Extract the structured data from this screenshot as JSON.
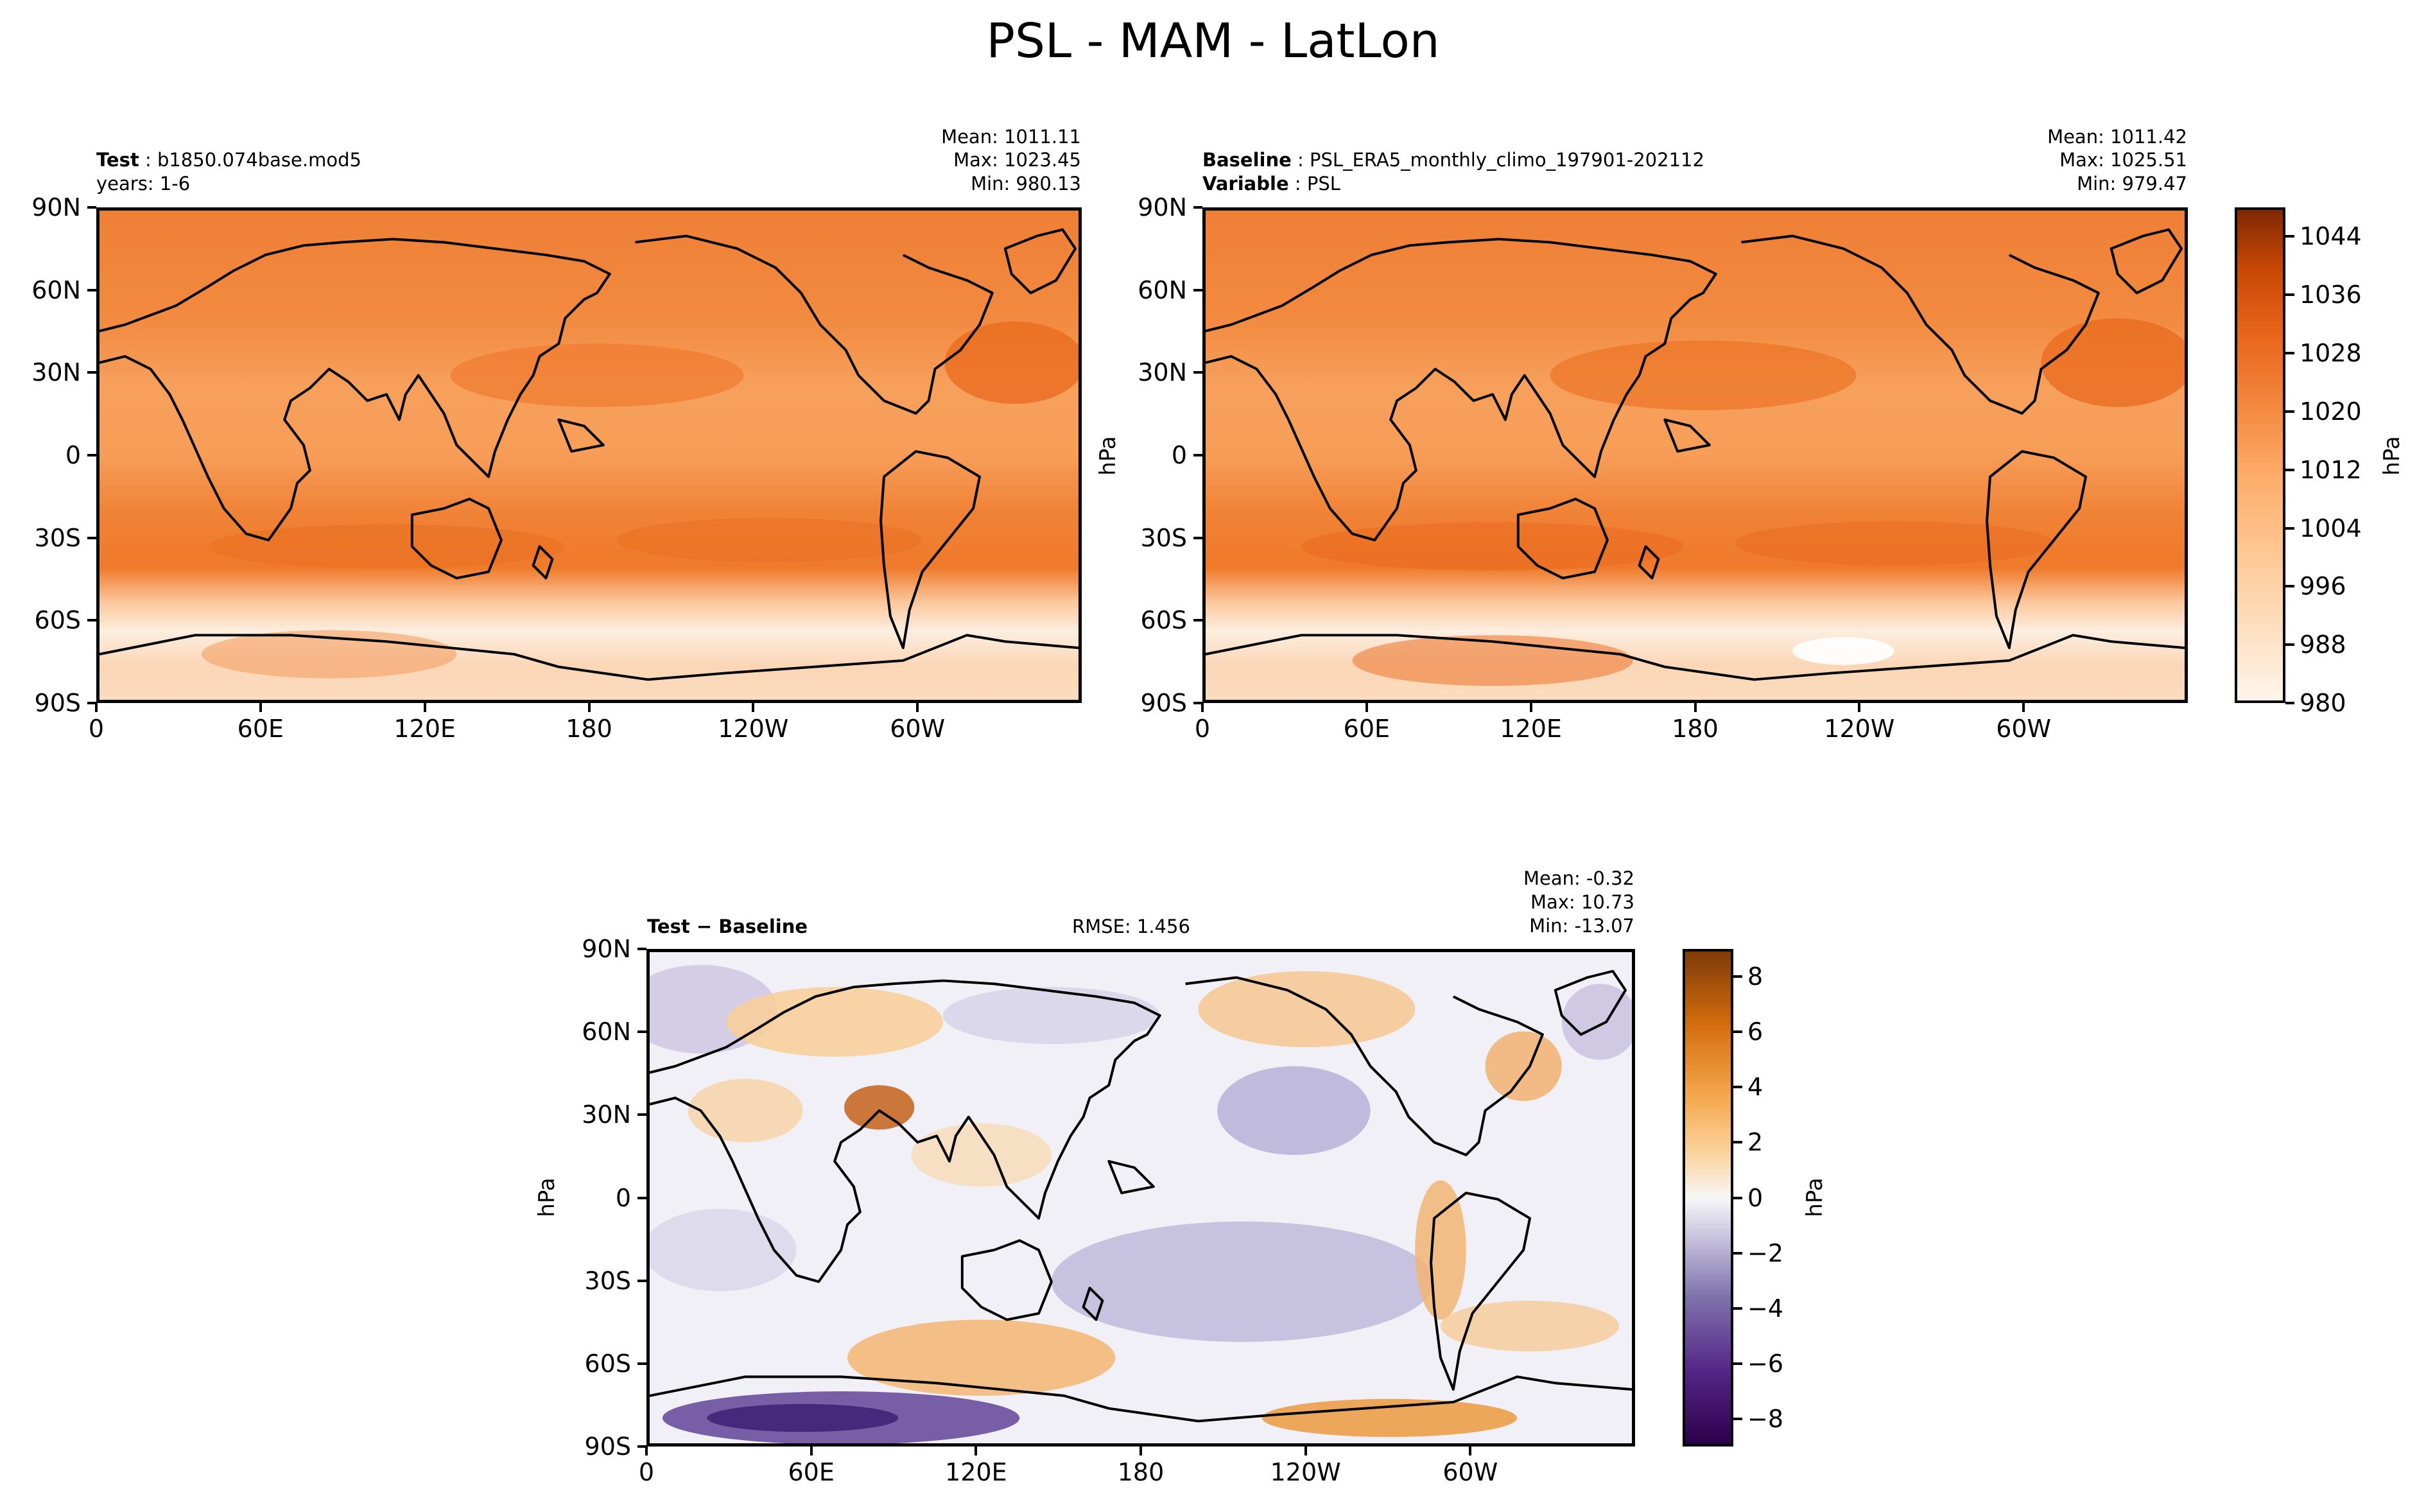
{
  "figure_title": "PSL - MAM - LatLon",
  "panels": {
    "test": {
      "label_bold": "Test",
      "label_value": "b1850.074base.mod5",
      "line2": "years: 1-6",
      "mean": "Mean: 1011.11",
      "max": "Max: 1023.45",
      "min": "Min: 980.13"
    },
    "baseline": {
      "label_bold": "Baseline",
      "label_value": "PSL_ERA5_monthly_climo_197901-202112",
      "var_bold": "Variable",
      "var_value": "PSL",
      "mean": "Mean: 1011.42",
      "max": "Max: 1025.51",
      "min": "Min: 979.47"
    },
    "diff": {
      "label": "Test − Baseline",
      "rmse": "RMSE: 1.456",
      "mean": "Mean: -0.32",
      "max": "Max: 10.73",
      "min": "Min: -13.07"
    }
  },
  "axes": {
    "lat_ticks": [
      "90N",
      "60N",
      "30N",
      "0",
      "30S",
      "60S",
      "90S"
    ],
    "lon_ticks": [
      "0",
      "60E",
      "120E",
      "180",
      "120W",
      "60W"
    ]
  },
  "colorbars": {
    "top": {
      "unit": "hPa",
      "ticks": [
        "1044",
        "1036",
        "1028",
        "1020",
        "1012",
        "1004",
        "996",
        "988",
        "980"
      ],
      "range": [
        980,
        1048
      ],
      "colormap": "Oranges"
    },
    "diff": {
      "unit": "hPa",
      "ticks": [
        "8",
        "6",
        "4",
        "2",
        "0",
        "−2",
        "−4",
        "−6",
        "−8"
      ],
      "range": [
        -9,
        9
      ],
      "colormap": "PuOr_r"
    }
  },
  "side_labels": {
    "top_right_panel_unit": "hPa",
    "diff_panel_unit": "hPa"
  },
  "colors": {
    "ocean_mid": "#f4944f",
    "ocean_high": "#ec7a2e",
    "polar_low": "#fde9d6",
    "diff_neg": "#b9b2d9",
    "diff_pos": "#f6c58a",
    "diff_zero": "#f2f1f6"
  }
}
